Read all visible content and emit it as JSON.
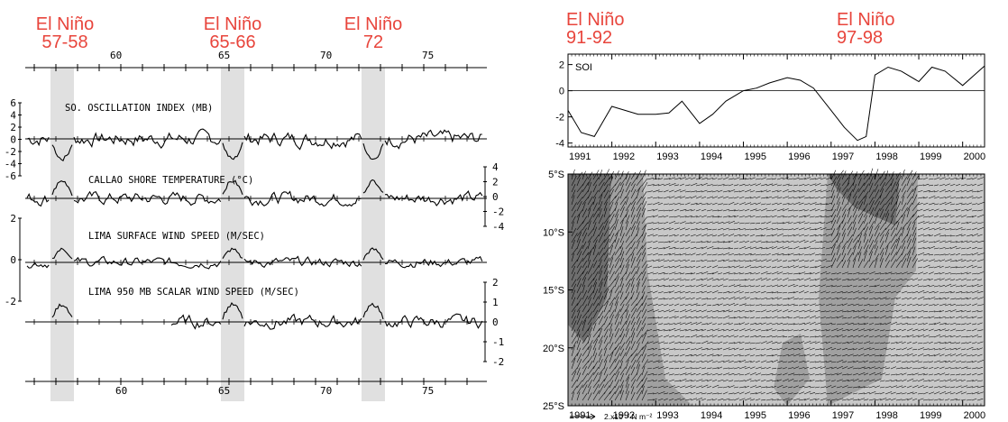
{
  "colors": {
    "enso_label": "#e8453c",
    "band": "#e0e0e0",
    "line": "#000000",
    "stress_dark": "#6e6e6e",
    "stress_mid": "#a0a0a0",
    "stress_light": "#c8c8c8"
  },
  "left_panel": {
    "el_nino_labels": [
      {
        "name": "El Niño",
        "years": "57-58"
      },
      {
        "name": "El Niño",
        "years": "65-66"
      },
      {
        "name": "El Niño",
        "years": "72"
      }
    ],
    "time_ticks": [
      "60",
      "65",
      "70",
      "75"
    ],
    "series": [
      {
        "name": "SO. OSCILLATION INDEX (MB)",
        "yticks": [
          "6",
          "4",
          "2",
          "0",
          "-2",
          "-4",
          "-6"
        ],
        "side": "left"
      },
      {
        "name": "CALLAO SHORE TEMPERATURE (°C)",
        "yticks": [
          "4",
          "2",
          "0",
          "-2",
          "-4"
        ],
        "side": "right"
      },
      {
        "name": "LIMA SURFACE WIND SPEED (M/SEC)",
        "yticks": [
          "2",
          "0",
          "-2"
        ],
        "side": "left"
      },
      {
        "name": "LIMA 950 MB SCALAR WIND SPEED (M/SEC)",
        "yticks": [
          "2",
          "1",
          "0",
          "-1",
          "-2"
        ],
        "side": "right"
      }
    ]
  },
  "chart_data": [
    {
      "type": "line",
      "title": "",
      "series": [
        {
          "name": "SOI",
          "x": [
            1991.0,
            1991.3,
            1991.6,
            1992.0,
            1992.3,
            1992.6,
            1993.0,
            1993.3,
            1993.6,
            1994.0,
            1994.3,
            1994.6,
            1995.0,
            1995.3,
            1995.6,
            1996.0,
            1996.3,
            1996.6,
            1997.0,
            1997.3,
            1997.6,
            1997.8,
            1998.0,
            1998.3,
            1998.6,
            1999.0,
            1999.3,
            1999.6,
            2000.0,
            2000.3,
            2000.5
          ],
          "y": [
            -1.5,
            -3.2,
            -3.5,
            -1.2,
            -1.5,
            -1.8,
            -1.8,
            -1.7,
            -0.8,
            -2.5,
            -1.8,
            -0.8,
            0.0,
            0.2,
            0.6,
            1.0,
            0.8,
            0.2,
            -1.5,
            -2.8,
            -3.8,
            -3.5,
            1.2,
            1.8,
            1.5,
            0.7,
            1.8,
            1.5,
            0.4,
            1.3,
            1.9
          ]
        }
      ],
      "xticks": [
        "1991",
        "1992",
        "1993",
        "1994",
        "1995",
        "1996",
        "1997",
        "1998",
        "1999",
        "2000"
      ],
      "yticks": [
        "2",
        "0",
        "-2",
        "-4"
      ],
      "xlim": [
        1991,
        2000.5
      ],
      "ylim": [
        -4.3,
        2.8
      ],
      "el_nino_labels": [
        {
          "name": "El Niño",
          "years": "91-92"
        },
        {
          "name": "El Niño",
          "years": "97-98"
        }
      ]
    },
    {
      "type": "heatmap",
      "description_free": true,
      "xticks": [
        "1991",
        "1992",
        "1993",
        "1994",
        "1995",
        "1996",
        "1997",
        "1998",
        "1999",
        "2000"
      ],
      "yticks": [
        "5°S",
        "10°S",
        "15°S",
        "20°S",
        "25°S"
      ],
      "xlim": [
        1991,
        2000.5
      ],
      "ylim": [
        -25,
        -5
      ],
      "vector_scale_label": "2.x10⁻² N m⁻²"
    }
  ]
}
